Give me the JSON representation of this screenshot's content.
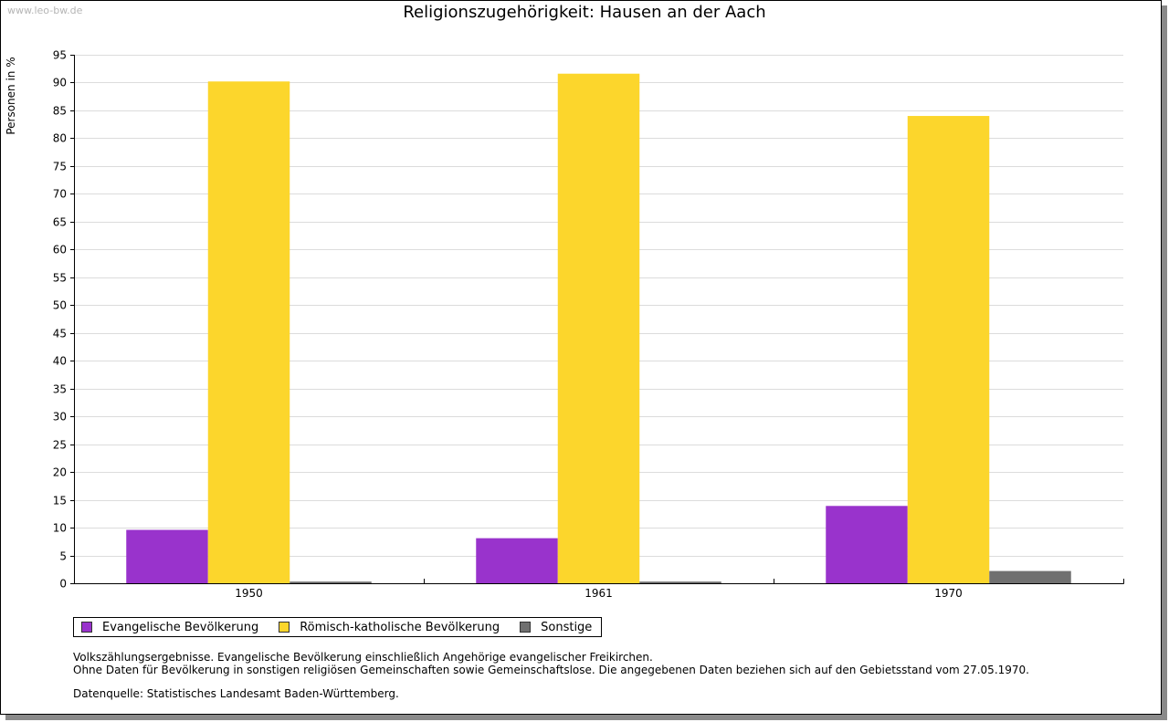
{
  "watermark": "www.leo-bw.de",
  "notes": {
    "line1": "Volkszählungsergebnisse. Evangelische Bevölkerung einschließlich Angehörige evangelischer Freikirchen.",
    "line2": "Ohne Daten für Bevölkerung in sonstigen religiösen Gemeinschaften sowie Gemeinschaftslose. Die angegebenen Daten beziehen sich auf den Gebietsstand vom 27.05.1970.",
    "source": "Datenquelle: Statistisches Landesamt Baden-Württemberg."
  },
  "chart_data": {
    "type": "bar",
    "title": "Religionszugehörigkeit: Hausen an der Aach",
    "xlabel": "",
    "ylabel": "Personen in %",
    "categories": [
      "1950",
      "1961",
      "1970"
    ],
    "ylim": [
      0,
      95
    ],
    "yticks": [
      0,
      5,
      10,
      15,
      20,
      25,
      30,
      35,
      40,
      45,
      50,
      55,
      60,
      65,
      70,
      75,
      80,
      85,
      90,
      95
    ],
    "grid": true,
    "legend_position": "bottom-left",
    "series": [
      {
        "name": "Evangelische Bevölkerung",
        "color": "#9933cc",
        "values": [
          9.6,
          8.1,
          13.9
        ]
      },
      {
        "name": "Römisch-katholische Bevölkerung",
        "color": "#fcd62c",
        "values": [
          90.2,
          91.6,
          84.0
        ]
      },
      {
        "name": "Sonstige",
        "color": "#707070",
        "values": [
          0.3,
          0.3,
          2.2
        ]
      }
    ]
  }
}
